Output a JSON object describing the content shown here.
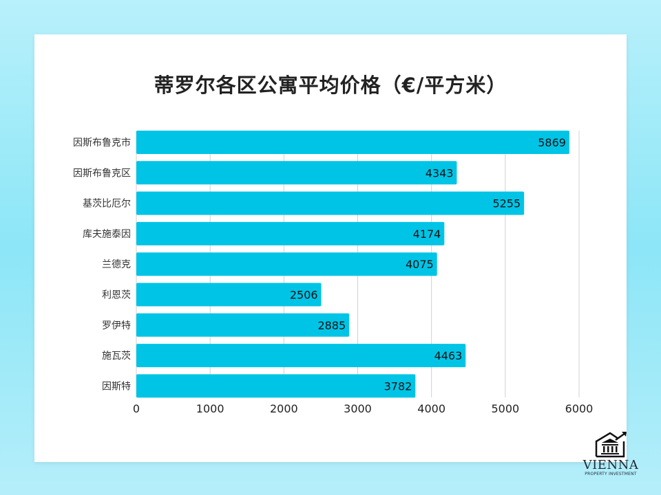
{
  "chart_data": {
    "type": "bar",
    "orientation": "horizontal",
    "title": "蒂罗尔各区公寓平均价格（€/平方米）",
    "categories": [
      "因斯布鲁克市",
      "因斯布鲁克区",
      "基茨比厄尔",
      "库夫施泰因",
      "兰德克",
      "利恩茨",
      "罗伊特",
      "施瓦茨",
      "因斯特"
    ],
    "values": [
      5869,
      4343,
      5255,
      4174,
      4075,
      2506,
      2885,
      4463,
      3782
    ],
    "xlim": [
      0,
      6000
    ],
    "xticks": [
      0,
      1000,
      2000,
      3000,
      4000,
      5000,
      6000
    ],
    "grid": true,
    "bar_color": "#00c4e6",
    "data_labels": true
  },
  "logo": {
    "name": "VIENNA",
    "subtitle": "PROPERTY INVESTMENT"
  }
}
